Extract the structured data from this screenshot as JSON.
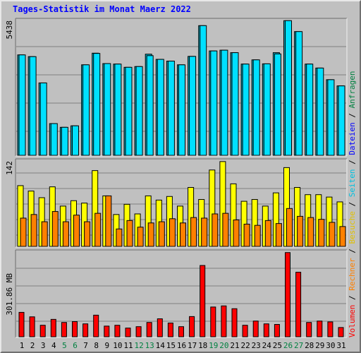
{
  "title": "Tages-Statistik im Monat Maerz 2022",
  "colors": {
    "frame_bg": "#c0c0c0",
    "panel_bg": "#c0c0c0",
    "gridline": "#808080",
    "anfragen": "#00e0ff",
    "dateien": "#00b0c8",
    "besuche": "#ffff00",
    "rechner": "#ff8000",
    "volumen": "#ff0000",
    "title": "#0000ff",
    "weekend_label": "#008040",
    "weekday_label": "#000000"
  },
  "chart_data": [
    {
      "type": "bar",
      "panel": "anfragen_dateien",
      "y_max_label": "5438",
      "ylim": [
        0,
        5438
      ],
      "categories": [
        "1",
        "2",
        "3",
        "4",
        "5",
        "6",
        "7",
        "8",
        "9",
        "10",
        "11",
        "12",
        "13",
        "14",
        "15",
        "16",
        "17",
        "18",
        "19",
        "20",
        "21",
        "22",
        "23",
        "24",
        "25",
        "26",
        "27",
        "28",
        "29",
        "30",
        "31"
      ],
      "weekend_days": [
        "5",
        "6",
        "12",
        "13",
        "19",
        "20",
        "26",
        "27"
      ],
      "series": [
        {
          "name": "Anfragen",
          "color": "#00e0ff",
          "values": [
            4050,
            3980,
            2920,
            1280,
            1130,
            1190,
            3650,
            4110,
            3700,
            3680,
            3550,
            3580,
            4020,
            3870,
            3800,
            3650,
            3990,
            5230,
            4210,
            4240,
            4140,
            3680,
            3850,
            3690,
            4090,
            5430,
            4990,
            3680,
            3520,
            3050,
            2800
          ]
        },
        {
          "name": "Dateien",
          "color": "#00b0c8",
          "values": [
            4050,
            3980,
            2920,
            1280,
            1130,
            1190,
            3650,
            4120,
            3700,
            3680,
            3550,
            3580,
            4080,
            3870,
            3800,
            3650,
            3990,
            5230,
            4210,
            4240,
            4140,
            3680,
            3850,
            3690,
            4140,
            5430,
            4990,
            3680,
            3520,
            3050,
            2800
          ]
        }
      ]
    },
    {
      "type": "bar",
      "panel": "besuche_rechner",
      "y_max_label": "142",
      "ylim": [
        0,
        142
      ],
      "categories": [
        "1",
        "2",
        "3",
        "4",
        "5",
        "6",
        "7",
        "8",
        "9",
        "10",
        "11",
        "12",
        "13",
        "14",
        "15",
        "16",
        "17",
        "18",
        "19",
        "20",
        "21",
        "22",
        "23",
        "24",
        "25",
        "26",
        "27",
        "28",
        "29",
        "30",
        "31"
      ],
      "series": [
        {
          "name": "Besuche",
          "color": "#ffff00",
          "values": [
            101,
            92,
            81,
            99,
            67,
            76,
            72,
            126,
            84,
            53,
            70,
            54,
            84,
            77,
            83,
            67,
            98,
            78,
            127,
            141,
            104,
            75,
            78,
            67,
            89,
            131,
            98,
            86,
            86,
            82,
            74
          ]
        },
        {
          "name": "Rechner",
          "color": "#ff8000",
          "values": [
            47,
            53,
            41,
            58,
            41,
            52,
            41,
            55,
            84,
            29,
            43,
            32,
            39,
            41,
            46,
            39,
            48,
            47,
            54,
            55,
            44,
            37,
            35,
            43,
            38,
            63,
            50,
            48,
            45,
            40,
            33
          ]
        }
      ]
    },
    {
      "type": "bar",
      "panel": "volumen",
      "y_max_label": "301.86 MB",
      "ylim": [
        0,
        301.86
      ],
      "categories": [
        "1",
        "2",
        "3",
        "4",
        "5",
        "6",
        "7",
        "8",
        "9",
        "10",
        "11",
        "12",
        "13",
        "14",
        "15",
        "16",
        "17",
        "18",
        "19",
        "20",
        "21",
        "22",
        "23",
        "24",
        "25",
        "26",
        "27",
        "28",
        "29",
        "30",
        "31"
      ],
      "series": [
        {
          "name": "Volumen",
          "color": "#ff0000",
          "values": [
            87,
            71,
            41,
            62,
            51,
            54,
            46,
            77,
            38,
            41,
            31,
            36,
            51,
            64,
            49,
            36,
            72,
            254,
            106,
            110,
            100,
            41,
            56,
            46,
            44,
            300,
            230,
            51,
            56,
            53,
            33
          ]
        }
      ]
    }
  ],
  "right_label": {
    "parts": [
      {
        "text": "Volumen",
        "color": "#ff0000"
      },
      {
        "text": " / ",
        "color": "#000000"
      },
      {
        "text": "Rechner",
        "color": "#ff8000"
      },
      {
        "text": " / ",
        "color": "#000000"
      },
      {
        "text": "Besuche",
        "color": "#e0c000"
      },
      {
        "text": " / ",
        "color": "#000000"
      },
      {
        "text": "Seiten",
        "color": "#00c0e0"
      },
      {
        "text": " / ",
        "color": "#000000"
      },
      {
        "text": "Dateien",
        "color": "#0000ff"
      },
      {
        "text": " / ",
        "color": "#000000"
      },
      {
        "text": "Anfragen",
        "color": "#008040"
      }
    ]
  }
}
